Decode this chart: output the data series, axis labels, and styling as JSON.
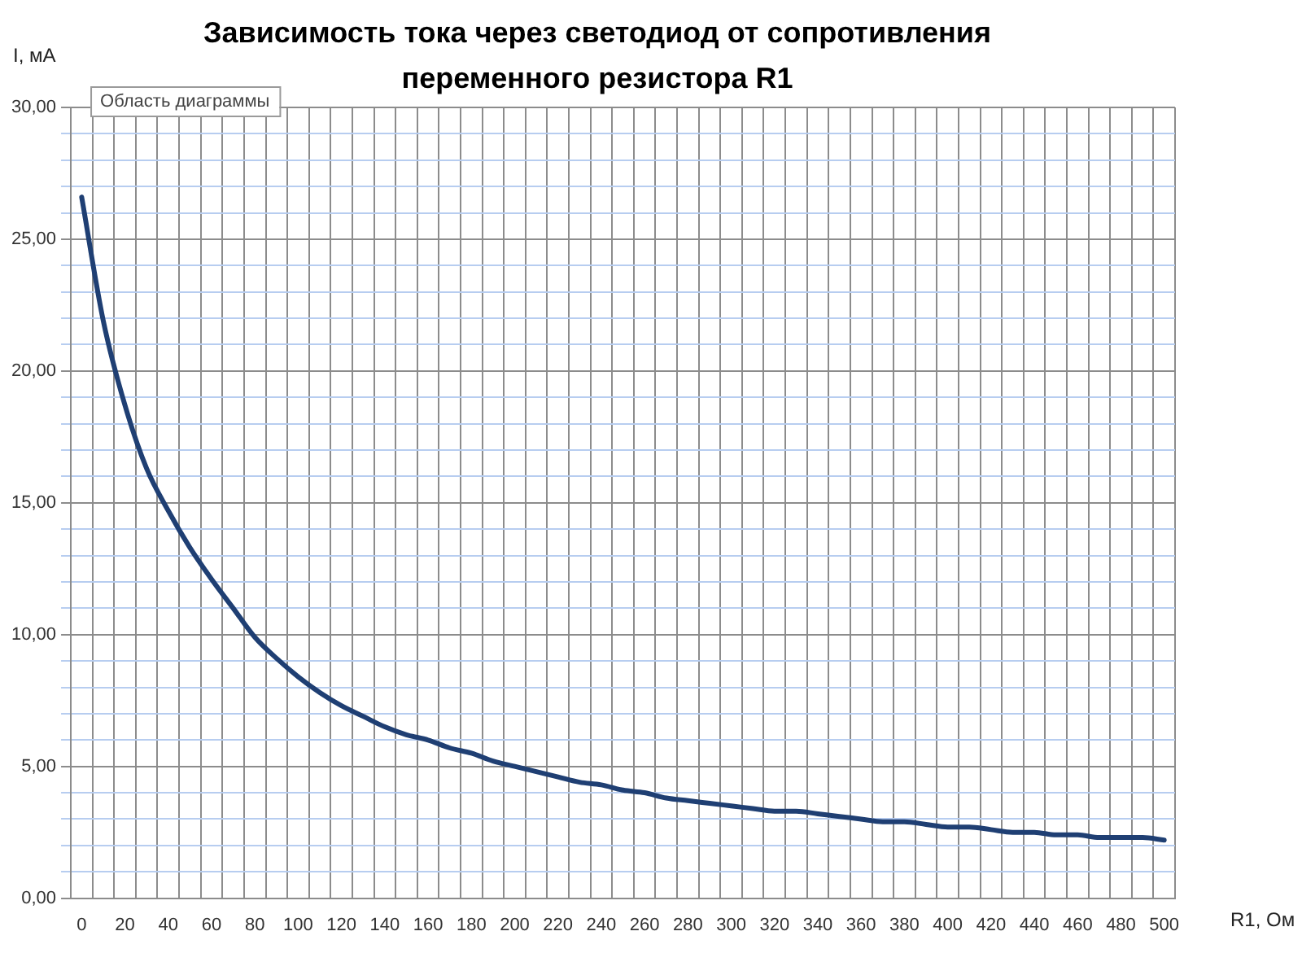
{
  "chart_data": {
    "type": "line",
    "title": "Зависимость тока через светодиод от сопротивления переменного резистора R1",
    "xlabel": "R1, Ом",
    "ylabel": "I, мА",
    "categories": [
      "0",
      null,
      "20",
      null,
      "40",
      null,
      "60",
      null,
      "80",
      null,
      "100",
      null,
      "120",
      null,
      "140",
      null,
      "160",
      null,
      "180",
      null,
      "200",
      null,
      "220",
      null,
      "240",
      null,
      "260",
      null,
      "280",
      null,
      "300",
      null,
      "320",
      null,
      "340",
      null,
      "360",
      null,
      "380",
      null,
      "400",
      null,
      "420",
      null,
      "440",
      null,
      "460",
      null,
      "480",
      null,
      "500"
    ],
    "series": [
      {
        "color": "#1f3f73",
        "values": [
          26.6,
          21.9,
          18.7,
          16.3,
          14.7,
          13.3,
          12.1,
          11.0,
          9.9,
          9.1,
          8.4,
          7.8,
          7.3,
          6.9,
          6.5,
          6.2,
          6.0,
          5.7,
          5.5,
          5.2,
          5.0,
          4.8,
          4.6,
          4.4,
          4.3,
          4.1,
          4.0,
          3.8,
          3.7,
          3.6,
          3.5,
          3.4,
          3.3,
          3.3,
          3.2,
          3.1,
          3.0,
          2.9,
          2.9,
          2.8,
          2.7,
          2.7,
          2.6,
          2.5,
          2.5,
          2.4,
          2.4,
          2.3,
          2.3,
          2.3,
          2.2
        ]
      }
    ],
    "ylim": [
      0,
      30
    ],
    "yticks": [
      {
        "value": 0,
        "label": "0,00"
      },
      {
        "value": 1,
        "label": null
      },
      {
        "value": 2,
        "label": null
      },
      {
        "value": 3,
        "label": null
      },
      {
        "value": 4,
        "label": null
      },
      {
        "value": 5,
        "label": "5,00"
      },
      {
        "value": 6,
        "label": null
      },
      {
        "value": 7,
        "label": null
      },
      {
        "value": 8,
        "label": null
      },
      {
        "value": 9,
        "label": null
      },
      {
        "value": 10,
        "label": "10,00"
      },
      {
        "value": 11,
        "label": null
      },
      {
        "value": 12,
        "label": null
      },
      {
        "value": 13,
        "label": null
      },
      {
        "value": 14,
        "label": null
      },
      {
        "value": 15,
        "label": "15,00"
      },
      {
        "value": 16,
        "label": null
      },
      {
        "value": 17,
        "label": null
      },
      {
        "value": 18,
        "label": null
      },
      {
        "value": 19,
        "label": null
      },
      {
        "value": 20,
        "label": "20,00"
      },
      {
        "value": 21,
        "label": null
      },
      {
        "value": 22,
        "label": null
      },
      {
        "value": 23,
        "label": null
      },
      {
        "value": 24,
        "label": null
      },
      {
        "value": 25,
        "label": "25,00"
      },
      {
        "value": 26,
        "label": null
      },
      {
        "value": 27,
        "label": null
      },
      {
        "value": 28,
        "label": null
      },
      {
        "value": 29,
        "label": null
      },
      {
        "value": 30,
        "label": "30,00"
      }
    ],
    "grid": true,
    "legend": false,
    "marker": "none",
    "line_style": "solid",
    "annotations": [
      "Область диаграммы"
    ]
  }
}
